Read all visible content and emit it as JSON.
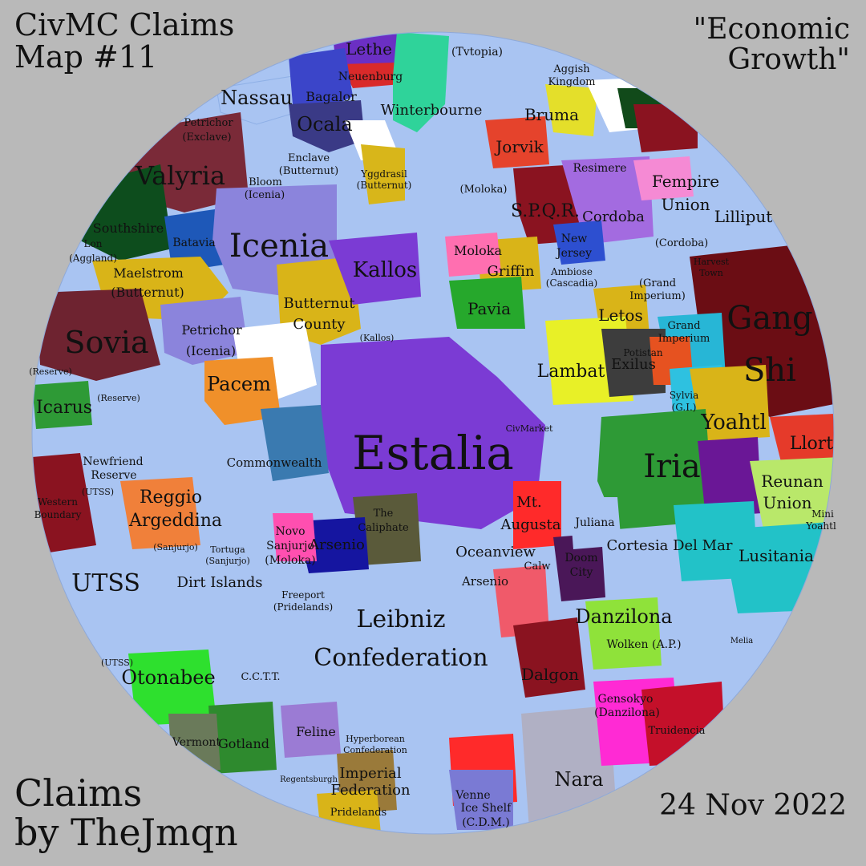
{
  "map": {
    "title_line1": "CivMC Claims",
    "title_line2": "Map #11",
    "subtitle_line1": "\"Economic",
    "subtitle_line2": "Growth\"",
    "credit_line1": "Claims",
    "credit_line2": "by TheJmqn",
    "date": "24 Nov 2022",
    "ocean_color": "#a9c4f2",
    "background_color": "#b9b9b9"
  },
  "labels": {
    "estalia": "Estalia",
    "icenia": "Icenia",
    "iria": "Iria",
    "sovia": "Sovia",
    "valyria": "Valyria",
    "gang_shi_1": "Gang",
    "gang_shi_2": "Shi",
    "leibniz_1": "Leibniz",
    "leibniz_2": "Confederation",
    "utss": "UTSS",
    "nassau": "Nassau",
    "ocala": "Ocala",
    "lethe": "Lethe",
    "kallos": "Kallos",
    "pacem": "Pacem",
    "icarus": "Icarus",
    "reggio_1": "Reggio",
    "reggio_2": "Argeddina",
    "otonabee": "Otonabee",
    "nara": "Nara",
    "danzilona": "Danzilona",
    "lambat": "Lambat",
    "letos": "Letos",
    "yoahtl": "Yoahtl",
    "llort": "Llort",
    "reunan_1": "Reunan",
    "reunan_2": "Union",
    "lusitania": "Lusitania",
    "cortesia": "Cortesia Del Mar",
    "mt_augusta_1": "Mt.",
    "mt_augusta_2": "Augusta",
    "oceanview": "Oceanview",
    "dalgon": "Dalgon",
    "imperial_1": "Imperial",
    "imperial_2": "Federation",
    "winterbourne": "Winterbourne",
    "bruma": "Bruma",
    "jorvik": "Jorvik",
    "fempire_1": "Fempire",
    "fempire_2": "Union",
    "lilliput": "Lilliput",
    "spqr": "S.P.Q.R.",
    "cordoba": "Cordoba",
    "pavia": "Pavia",
    "griffin": "Griffin",
    "moloka": "Moloka",
    "butternut_1": "Butternut",
    "butternut_2": "County",
    "petrichor_1": "Petrichor",
    "petrichor_2": "(Icenia)",
    "maelstrom_1": "Maelstrom",
    "maelstrom_2": "(Butternut)",
    "commonwealth": "Commonwealth",
    "dirt_islands": "Dirt Islands",
    "arsenio": "Arsenio",
    "novo_1": "Novo",
    "novo_2": "Sanjurjo",
    "novo_3": "(Moloka)",
    "caliphate_1": "The",
    "caliphate_2": "Caliphate",
    "gotland": "Gotland",
    "vermont": "Vermont",
    "feline": "Feline",
    "wolken": "Wolken (A.P.)",
    "gensokyo_1": "Gensokyo",
    "gensokyo_2": "(Danzilona)",
    "exilus": "Exilus",
    "bagalor": "Bagalor",
    "neuberg": "Neuenburg",
    "southshire": "Southshire",
    "batavia": "Batavia",
    "tvtopia": "(Tvtopia)",
    "aggish_1": "Aggish",
    "aggish_2": "Kingdom",
    "newfriend_1": "Newfriend",
    "newfriend_2": "Reserve",
    "freeport_1": "Freeport",
    "freeport_2": "(Pridelands)",
    "pridelands": "Pridelands",
    "ice_shelf_1": "Ice Shelf",
    "ice_shelf_2": "(C.D.M.)",
    "venne": "Venne",
    "truidencia": "Truidencia",
    "melia": "Melia",
    "sylvia_1": "Sylvia",
    "sylvia_2": "(G.I.)",
    "grand_imp_1": "Grand",
    "grand_imp_2": "Imperium",
    "bloom_1": "Bloom",
    "bloom_2": "(Icenia)",
    "enclave_1": "Enclave",
    "enclave_2": "(Butternut)",
    "ambiose_1": "Ambiose",
    "ambiose_2": "(Cascadia)",
    "new_jersey_1": "New",
    "new_jersey_2": "Jersey",
    "civmarket": "CivMarket",
    "moloka_paren": "(Moloka)",
    "kallos_paren": "(Kallos)",
    "reserve_1": "(Reserve)",
    "reserve_2": "(Reserve)",
    "utss_paren": "(UTSS)",
    "utss_paren2": "(UTSS)",
    "sanjurjo_paren": "(Sanjurjo)",
    "tortuga_1": "Tortuga",
    "tortuga_2": "(Sanjurjo)",
    "harvest_1": "Harvest",
    "harvest_2": "Town",
    "cordoba_paren": "(Cordoba)",
    "grand_imp_paren": "(Grand",
    "grand_imp_paren2": "Imperium)",
    "petrichor_ex_1": "Petrichor",
    "petrichor_ex_2": "(Exclave)",
    "lon_1": "Lon",
    "lon_2": "(Aggland)",
    "yggdrasil_1": "Yggdrasil",
    "yggdrasil_2": "(Butternut)",
    "potistan": "Potistan",
    "mini_yoahtl_1": "Mini",
    "mini_yoahtl_2": "Yoahtl",
    "juliana": "Juliana",
    "doom_city_1": "Doom",
    "doom_city_2": "City",
    "arsenio_pact": "Arsenio",
    "western_1": "Western",
    "western_2": "Boundary",
    "resimere": "Resimere",
    "hyperborean_1": "Hyperborean",
    "hyperborean_2": "Confederation",
    "calw": "Calw",
    "ccrt": "C.C.T.T.",
    "regentsburgh": "Regentsburgh"
  }
}
